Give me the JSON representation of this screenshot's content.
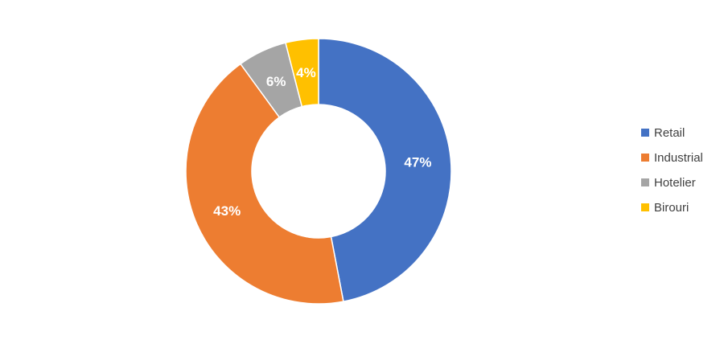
{
  "chart_data": {
    "type": "pie",
    "variant": "doughnut",
    "categories": [
      "Retail",
      "Industrial",
      "Hotelier",
      "Birouri"
    ],
    "values": [
      47,
      43,
      6,
      4
    ],
    "labels": [
      "47%",
      "43%",
      "6%",
      "4%"
    ],
    "colors": [
      "#4472c4",
      "#ed7d31",
      "#a5a5a5",
      "#ffc000"
    ],
    "legend": "right"
  }
}
